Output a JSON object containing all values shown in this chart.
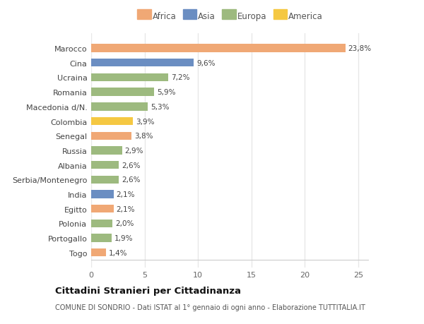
{
  "categories": [
    "Togo",
    "Portogallo",
    "Polonia",
    "Egitto",
    "India",
    "Serbia/Montenegro",
    "Albania",
    "Russia",
    "Senegal",
    "Colombia",
    "Macedonia d/N.",
    "Romania",
    "Ucraina",
    "Cina",
    "Marocco"
  ],
  "values": [
    1.4,
    1.9,
    2.0,
    2.1,
    2.1,
    2.6,
    2.6,
    2.9,
    3.8,
    3.9,
    5.3,
    5.9,
    7.2,
    9.6,
    23.8
  ],
  "labels": [
    "1,4%",
    "1,9%",
    "2,0%",
    "2,1%",
    "2,1%",
    "2,6%",
    "2,6%",
    "2,9%",
    "3,8%",
    "3,9%",
    "5,3%",
    "5,9%",
    "7,2%",
    "9,6%",
    "23,8%"
  ],
  "colors": [
    "#f0a875",
    "#9dba7f",
    "#9dba7f",
    "#f0a875",
    "#6b8ec2",
    "#9dba7f",
    "#9dba7f",
    "#9dba7f",
    "#f0a875",
    "#f5c842",
    "#9dba7f",
    "#9dba7f",
    "#9dba7f",
    "#6b8ec2",
    "#f0a875"
  ],
  "continent_labels": [
    "Africa",
    "Asia",
    "Europa",
    "America"
  ],
  "continent_colors": [
    "#f0a875",
    "#6b8ec2",
    "#9dba7f",
    "#f5c842"
  ],
  "title": "Cittadini Stranieri per Cittadinanza",
  "subtitle": "COMUNE DI SONDRIO - Dati ISTAT al 1° gennaio di ogni anno - Elaborazione TUTTITALIA.IT",
  "xlim": [
    0,
    26
  ],
  "xticks": [
    0,
    5,
    10,
    15,
    20,
    25
  ],
  "bg_color": "#ffffff",
  "plot_bg_color": "#ffffff",
  "grid_color": "#e8e8e8",
  "bar_height": 0.55
}
